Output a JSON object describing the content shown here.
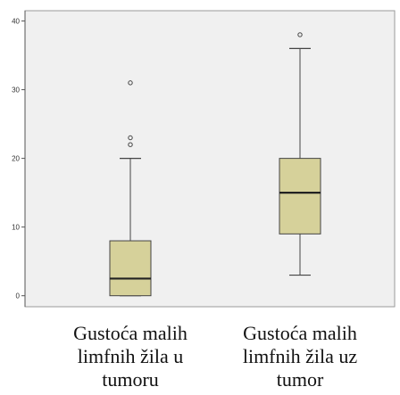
{
  "chart_data": {
    "type": "boxplot",
    "title": "",
    "xlabel": "",
    "ylabel": "",
    "ylim": [
      -1.6,
      41.5
    ],
    "yticks": [
      0,
      10,
      20,
      30,
      40
    ],
    "grid": false,
    "legend": "none",
    "box_color": "#d6d19a",
    "plot_background": "#f0f0f0",
    "categories": [
      [
        "Gustoća malih",
        "limfnih žila u",
        "tumoru"
      ],
      [
        "Gustoća malih",
        "limfnih žila uz",
        "tumor"
      ]
    ],
    "series": [
      {
        "min": 0,
        "q1": 0,
        "median": 2.5,
        "q3": 8,
        "max": 20,
        "outliers": [
          22,
          23,
          31
        ]
      },
      {
        "min": 3,
        "q1": 9,
        "median": 15,
        "q3": 20,
        "max": 36,
        "outliers": [
          38
        ]
      }
    ]
  }
}
